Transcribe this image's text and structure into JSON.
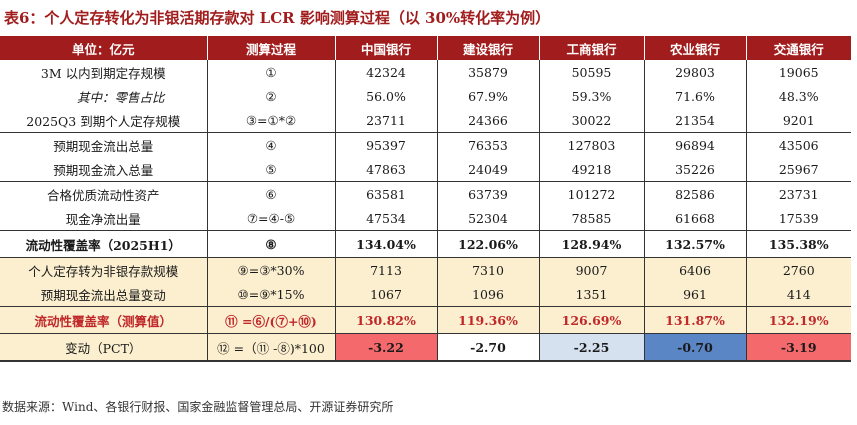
{
  "title": "表6：个人定存转化为非银活期存款对 LCR 影响测算过程（以 30%转化率为例）",
  "header": [
    "单位：亿元",
    "测算过程",
    "中国银行",
    "建设银行",
    "工商银行",
    "农业银行",
    "交通银行"
  ],
  "rows": [
    {
      "label": "3M 以内到期定存规模",
      "process": "①",
      "values": [
        "42324",
        "35879",
        "50595",
        "29803",
        "19065"
      ]
    },
    {
      "label": "其中：零售占比",
      "process": "②",
      "values": [
        "56.0%",
        "67.9%",
        "59.3%",
        "71.6%",
        "48.3%"
      ]
    },
    {
      "label": "2025Q3 到期个人定存规模",
      "process": "③=①*②",
      "values": [
        "23711",
        "24366",
        "30022",
        "21354",
        "9201"
      ]
    },
    {
      "label": "预期现金流出总量",
      "process": "④",
      "values": [
        "95397",
        "76353",
        "127803",
        "96894",
        "43506"
      ]
    },
    {
      "label": "预期现金流入总量",
      "process": "⑤",
      "values": [
        "47863",
        "24049",
        "49218",
        "35226",
        "25967"
      ]
    },
    {
      "label": "合格优质流动性资产",
      "process": "⑥",
      "values": [
        "63581",
        "63739",
        "101272",
        "82586",
        "23731"
      ]
    },
    {
      "label": "现金净流出量",
      "process": "⑦=④-⑤",
      "values": [
        "47534",
        "52304",
        "78585",
        "61668",
        "17539"
      ]
    },
    {
      "label": "流动性覆盖率（2025H1）",
      "process": "⑧",
      "values": [
        "134.04%",
        "122.06%",
        "128.94%",
        "132.57%",
        "135.38%"
      ]
    },
    {
      "label": "个人定存转为非银存款规模",
      "process": "⑨=③*30%",
      "values": [
        "7113",
        "7310",
        "9007",
        "6406",
        "2760"
      ]
    },
    {
      "label": "预期现金流出总量变动",
      "process": "⑩=⑨*15%",
      "values": [
        "1067",
        "1096",
        "1351",
        "961",
        "414"
      ]
    },
    {
      "label": "流动性覆盖率（测算值）",
      "process": "⑪ =⑥/(⑦+⑩)",
      "values": [
        "130.82%",
        "119.36%",
        "126.69%",
        "131.87%",
        "132.19%"
      ]
    },
    {
      "label": "变动（PCT）",
      "process": "⑫ =（⑪ -⑧)*100",
      "values": [
        "-3.22",
        "-2.70",
        "-2.25",
        "-0.70",
        "-3.19"
      ]
    }
  ],
  "change_colors": [
    "#f3696c",
    "#ffffff",
    "#d6e1f0",
    "#5b86c6",
    "#f3696c"
  ],
  "source": "数据来源：Wind、各银行财报、国家金融监督管理总局、开源证券研究所"
}
